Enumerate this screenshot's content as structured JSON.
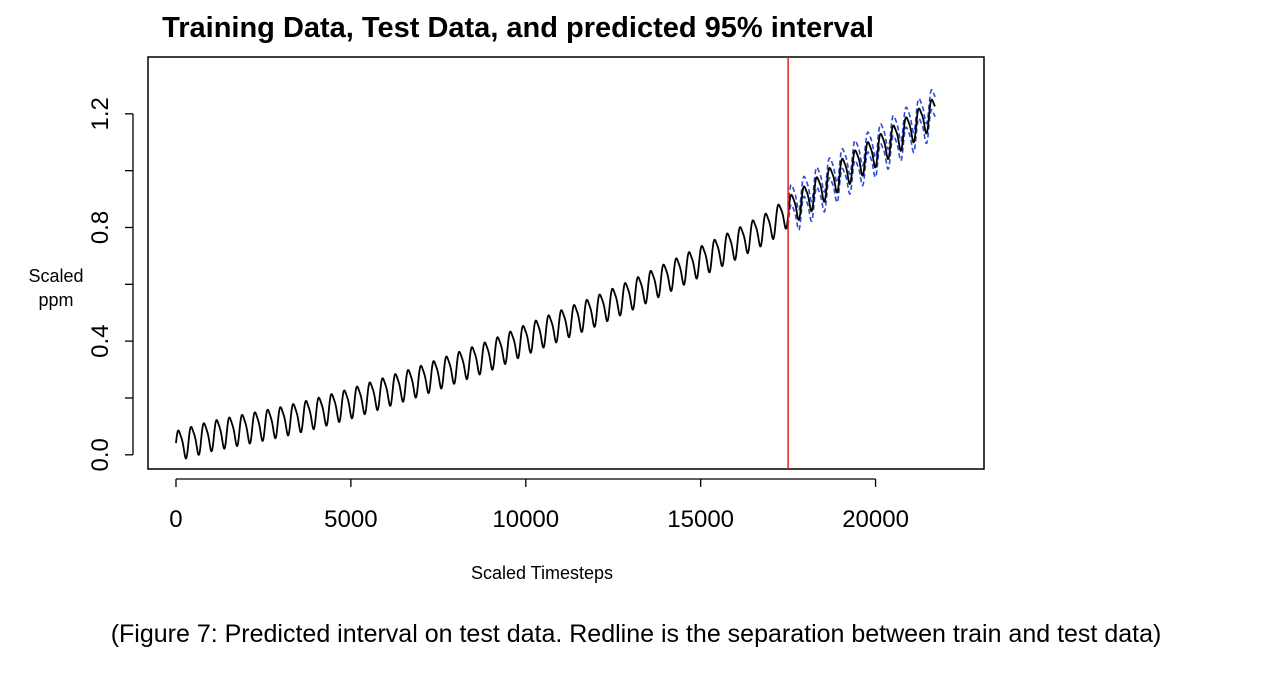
{
  "chart_data": {
    "type": "line",
    "title": "Training Data, Test Data, and predicted 95% interval",
    "xlabel": "Scaled Timesteps",
    "ylabel": [
      "Scaled",
      "ppm"
    ],
    "xlim": [
      -800,
      23100
    ],
    "ylim": [
      -0.05,
      1.4
    ],
    "xticks": [
      0,
      5000,
      10000,
      15000,
      20000
    ],
    "xtick_labels": [
      "0",
      "5000",
      "10000",
      "15000",
      "20000"
    ],
    "yticks": [
      0.0,
      0.4,
      0.8,
      1.2
    ],
    "ytick_labels": [
      "0.0",
      "0.4",
      "0.8",
      "1.2"
    ],
    "ytick_minor": [
      0.2,
      0.6,
      1.0
    ],
    "grid": false,
    "legend": "none",
    "split_x": 17500,
    "series": [
      {
        "role": "data",
        "color": "#000000",
        "x": [
          0,
          1000,
          2000,
          3000,
          4000,
          5000,
          6000,
          7000,
          8000,
          9000,
          10000,
          11000,
          12000,
          13000,
          14000,
          15000,
          16000,
          17000,
          17500,
          18000,
          19000,
          20000,
          21000,
          21700
        ],
        "trend": [
          0.035,
          0.07,
          0.095,
          0.12,
          0.15,
          0.185,
          0.225,
          0.265,
          0.31,
          0.355,
          0.41,
          0.46,
          0.51,
          0.565,
          0.625,
          0.685,
          0.745,
          0.81,
          0.86,
          0.9,
          0.99,
          1.07,
          1.15,
          1.21
        ],
        "seasonal_amplitude": 0.05,
        "seasonal_period": 365
      },
      {
        "role": "interval",
        "color": "#2a4bd7",
        "dashed": true,
        "x_start": 17500,
        "x_end": 21700,
        "half_width": 0.035
      },
      {
        "role": "separator",
        "color": "#e02020",
        "x": 17500
      }
    ]
  },
  "caption": "(Figure 7: Predicted interval on test data. Redline is the separation between train and test data)"
}
